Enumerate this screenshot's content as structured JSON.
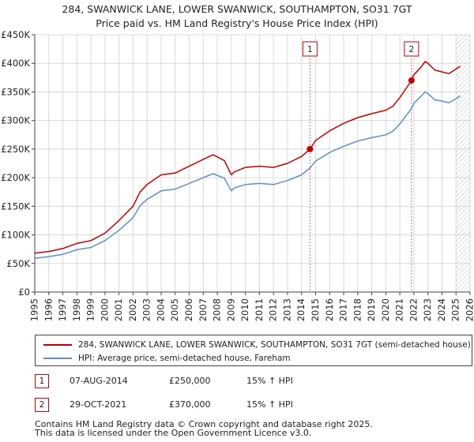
{
  "chart_data": {
    "type": "line",
    "title": "284, SWANWICK LANE, LOWER SWANWICK, SOUTHAMPTON, SO31 7GT",
    "subtitle": "Price paid vs. HM Land Registry's House Price Index (HPI)",
    "xlim": [
      1995,
      2026
    ],
    "ylim": [
      0,
      450000
    ],
    "x_ticks": [
      1995,
      1996,
      1997,
      1998,
      1999,
      2000,
      2001,
      2002,
      2003,
      2004,
      2005,
      2006,
      2007,
      2008,
      2009,
      2010,
      2011,
      2012,
      2013,
      2014,
      2015,
      2016,
      2017,
      2018,
      2019,
      2020,
      2021,
      2022,
      2023,
      2024,
      2025,
      2026
    ],
    "y_ticks": [
      0,
      50000,
      100000,
      150000,
      200000,
      250000,
      300000,
      350000,
      400000,
      450000
    ],
    "y_tick_labels": [
      "£0",
      "£50K",
      "£100K",
      "£150K",
      "£200K",
      "£250K",
      "£300K",
      "£350K",
      "£400K",
      "£450K"
    ],
    "grid": true,
    "projection_hatch_from": 2025.0,
    "series": [
      {
        "name": "284, SWANWICK LANE, LOWER SWANWICK, SOUTHAMPTON, SO31 7GT (semi-detached house)",
        "color": "#c00000",
        "x": [
          1995,
          1996,
          1997,
          1998,
          1999,
          2000,
          2001,
          2002,
          2002.5,
          2003,
          2004,
          2005,
          2006,
          2007,
          2007.7,
          2008.5,
          2009,
          2009.2,
          2010,
          2011,
          2012,
          2013,
          2014,
          2014.6,
          2015,
          2016,
          2017,
          2018,
          2019,
          2020,
          2020.5,
          2021,
          2021.83,
          2022,
          2022.5,
          2022.8,
          2023,
          2023.5,
          2024,
          2024.5,
          2025,
          2025.3
        ],
        "y": [
          68000,
          71000,
          76000,
          85000,
          90000,
          103000,
          125000,
          150000,
          175000,
          188000,
          205000,
          208000,
          220000,
          232000,
          240000,
          230000,
          205000,
          210000,
          218000,
          220000,
          218000,
          225000,
          237000,
          250000,
          265000,
          282000,
          295000,
          305000,
          312000,
          318000,
          325000,
          340000,
          370000,
          380000,
          393000,
          403000,
          400000,
          388000,
          385000,
          382000,
          390000,
          395000
        ]
      },
      {
        "name": "HPI: Average price, semi-detached house, Fareham",
        "color": "#5b8fd0",
        "x": [
          1995,
          1996,
          1997,
          1998,
          1999,
          2000,
          2001,
          2002,
          2002.5,
          2003,
          2004,
          2005,
          2006,
          2007,
          2007.7,
          2008.5,
          2009,
          2009.2,
          2010,
          2011,
          2012,
          2013,
          2014,
          2014.6,
          2015,
          2016,
          2017,
          2018,
          2019,
          2020,
          2020.5,
          2021,
          2021.83,
          2022,
          2022.5,
          2022.8,
          2023,
          2023.5,
          2024,
          2024.5,
          2025,
          2025.3
        ],
        "y": [
          59000,
          62000,
          66000,
          74000,
          78000,
          90000,
          108000,
          130000,
          151000,
          162000,
          177000,
          180000,
          190000,
          200000,
          207000,
          199000,
          177000,
          182000,
          188000,
          190000,
          188000,
          195000,
          205000,
          217000,
          229000,
          244000,
          255000,
          264000,
          270000,
          275000,
          281000,
          294000,
          321000,
          330000,
          342000,
          350000,
          347000,
          336000,
          334000,
          331000,
          338000,
          343000
        ]
      }
    ],
    "markers": [
      {
        "id": "1",
        "x": 2014.6,
        "y": 250000
      },
      {
        "id": "2",
        "x": 2021.83,
        "y": 370000
      }
    ]
  },
  "legend": {
    "property_label": "284, SWANWICK LANE, LOWER SWANWICK, SOUTHAMPTON, SO31 7GT (semi-detached house)",
    "hpi_label": "HPI: Average price, semi-detached house, Fareham"
  },
  "sales": [
    {
      "num": "1",
      "date": "07-AUG-2014",
      "price": "£250,000",
      "hpi": "15% ↑ HPI"
    },
    {
      "num": "2",
      "date": "29-OCT-2021",
      "price": "£370,000",
      "hpi": "15% ↑ HPI"
    }
  ],
  "footer": {
    "line1": "Contains HM Land Registry data © Crown copyright and database right 2025.",
    "line2": "This data is licensed under the Open Government Licence v3.0."
  }
}
